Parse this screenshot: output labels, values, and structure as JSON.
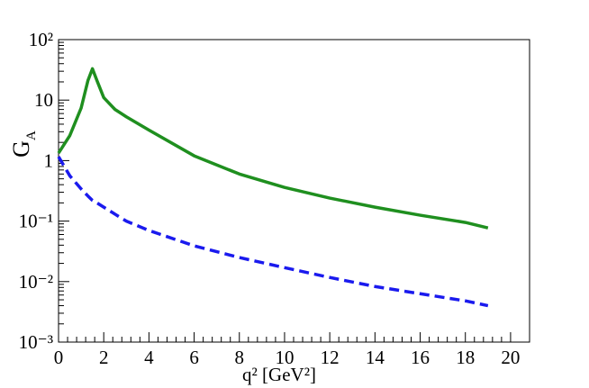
{
  "chart_data": {
    "type": "line",
    "x_label": "q² [GeV²]",
    "y_label": {
      "main": "G",
      "sub": "A"
    },
    "x": [
      0,
      0.5,
      1,
      1.3,
      1.5,
      1.7,
      2,
      2.5,
      3,
      4,
      6,
      8,
      10,
      12,
      14,
      16,
      18,
      19
    ],
    "series": [
      {
        "color": "#1f8f1f",
        "dash": false,
        "values": [
          1.33,
          2.6,
          7.4,
          21,
          33,
          21,
          11,
          7,
          5.3,
          3.2,
          1.2,
          0.6,
          0.36,
          0.24,
          0.17,
          0.125,
          0.095,
          0.077
        ]
      },
      {
        "color": "#1a1aee",
        "dash": true,
        "values": [
          1.16,
          0.56,
          0.34,
          0.26,
          0.22,
          0.2,
          0.17,
          0.13,
          0.1,
          0.07,
          0.039,
          0.025,
          0.017,
          0.0117,
          0.0083,
          0.0063,
          0.0048,
          0.004
        ]
      }
    ],
    "xlim": [
      0,
      20.84
    ],
    "xticks": [
      0,
      2,
      4,
      6,
      8,
      10,
      12,
      14,
      16,
      18,
      20
    ],
    "ylim": [
      0.001,
      100
    ],
    "log_y": true,
    "yticks": [
      {
        "value": 0.001,
        "label": "10⁻³"
      },
      {
        "value": 0.01,
        "label": "10⁻²"
      },
      {
        "value": 0.1,
        "label": "10⁻¹"
      },
      1,
      10,
      {
        "value": 100,
        "label": "10²"
      }
    ]
  }
}
